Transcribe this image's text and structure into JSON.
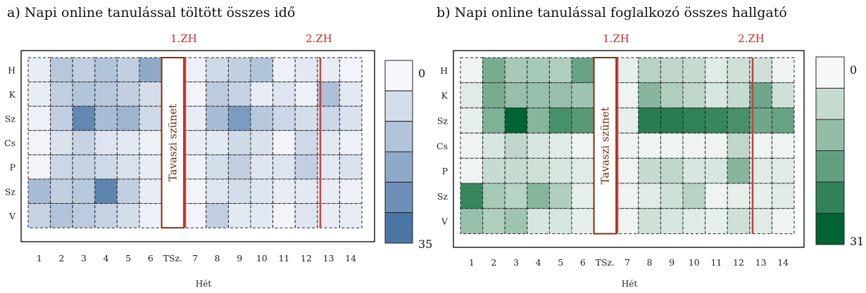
{
  "chart_data": [
    {
      "type": "heatmap",
      "title": "a) Napi online tanulással töltött összes idő",
      "xlabel": "Hét",
      "x_categories": [
        "1",
        "2",
        "3",
        "4",
        "5",
        "6",
        "TSz.",
        "7",
        "8",
        "9",
        "10",
        "11",
        "12",
        "13",
        "14"
      ],
      "y_categories": [
        "H",
        "K",
        "Sz",
        "Cs",
        "P",
        "Sz",
        "V"
      ],
      "values": [
        [
          3,
          13,
          11,
          14,
          11,
          21,
          0,
          2,
          8,
          11,
          14,
          2,
          4,
          3,
          1
        ],
        [
          3,
          11,
          14,
          13,
          11,
          7,
          0,
          1,
          12,
          10,
          3,
          5,
          2,
          15,
          4
        ],
        [
          2,
          11,
          30,
          16,
          18,
          8,
          0,
          3,
          16,
          25,
          13,
          9,
          7,
          9,
          6
        ],
        [
          1,
          6,
          10,
          5,
          4,
          2,
          0,
          3,
          4,
          8,
          6,
          1,
          8,
          4,
          2
        ],
        [
          1,
          9,
          10,
          8,
          6,
          3,
          0,
          2,
          7,
          11,
          5,
          5,
          11,
          4,
          6
        ],
        [
          16,
          11,
          13,
          31,
          11,
          3,
          0,
          1,
          5,
          7,
          5,
          3,
          4,
          3,
          2
        ],
        [
          10,
          14,
          12,
          10,
          7,
          2,
          0,
          1,
          11,
          4,
          4,
          1,
          5,
          3,
          3
        ]
      ],
      "colorbar": {
        "min": 0,
        "max": 35,
        "min_label": "0",
        "max_label": "35",
        "color_low": "#f7f8fc",
        "color_high": "#4a76a6"
      },
      "markers": [
        {
          "label": "1.ZH",
          "color": "#d43a3a"
        },
        {
          "label": "2.ZH",
          "color": "#d43a3a"
        }
      ],
      "break_label": "Tavaszi szünet",
      "break_color": "#7a3310"
    },
    {
      "type": "heatmap",
      "title": "b) Napi online tanulással foglalkozó összes hallgató",
      "xlabel": "Hét",
      "x_categories": [
        "1",
        "2",
        "3",
        "4",
        "5",
        "6",
        "TSz.",
        "7",
        "8",
        "9",
        "10",
        "11",
        "12",
        "13",
        "14"
      ],
      "y_categories": [
        "H",
        "K",
        "Sz",
        "Cs",
        "P",
        "Sz",
        "V"
      ],
      "values": [
        [
          1,
          16,
          10,
          10,
          9,
          18,
          0,
          2,
          8,
          7,
          6,
          3,
          5,
          5,
          1
        ],
        [
          3,
          16,
          12,
          12,
          12,
          11,
          0,
          1,
          14,
          9,
          7,
          4,
          6,
          17,
          5
        ],
        [
          2,
          15,
          31,
          14,
          22,
          20,
          0,
          2,
          26,
          26,
          25,
          24,
          22,
          17,
          18
        ],
        [
          1,
          4,
          7,
          4,
          3,
          1,
          0,
          1,
          1,
          1,
          1,
          1,
          7,
          1,
          1
        ],
        [
          1,
          6,
          6,
          5,
          4,
          3,
          0,
          1,
          6,
          7,
          4,
          4,
          14,
          3,
          3
        ],
        [
          24,
          10,
          8,
          14,
          9,
          2,
          0,
          1,
          3,
          5,
          8,
          1,
          2,
          2,
          3
        ],
        [
          12,
          9,
          11,
          4,
          4,
          2,
          0,
          1,
          5,
          4,
          3,
          2,
          5,
          3,
          1
        ]
      ],
      "colorbar": {
        "min": 0,
        "max": 31,
        "min_label": "0",
        "max_label": "31",
        "color_low": "#f7f9f7",
        "color_high": "#006432"
      },
      "markers": [
        {
          "label": "1.ZH",
          "color": "#d43a3a"
        },
        {
          "label": "2.ZH",
          "color": "#d43a3a"
        }
      ],
      "break_label": "Tavaszi szünet",
      "break_color": "#7a3310"
    }
  ]
}
